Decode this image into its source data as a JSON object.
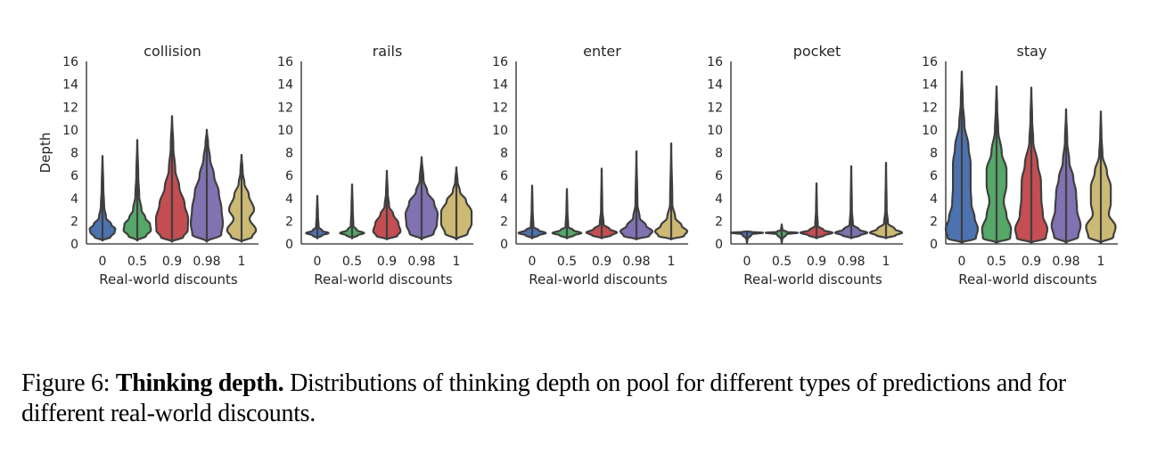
{
  "caption": {
    "label": "Figure 6:",
    "bold": "Thinking depth.",
    "text": "Distributions of thinking depth on pool for different types of predictions and for different real-world discounts."
  },
  "chart_data": {
    "type": "violin",
    "shared_ylabel": "Depth",
    "xlabel": "Real-world discounts",
    "categories": [
      "0",
      "0.5",
      "0.9",
      "0.98",
      "1"
    ],
    "series_colors": [
      "#4c72b0",
      "#55a868",
      "#c44e52",
      "#8172b2",
      "#ccb974"
    ],
    "ylim": [
      0,
      16
    ],
    "yticks": [
      0,
      2,
      4,
      6,
      8,
      10,
      12,
      14,
      16
    ],
    "panels": [
      {
        "title": "collision",
        "violins": [
          {
            "max": 7.7,
            "profile": [
              [
                0.3,
                0
              ],
              [
                0.6,
                0.5
              ],
              [
                1.0,
                0.75
              ],
              [
                1.3,
                0.8
              ],
              [
                1.7,
                0.55
              ],
              [
                2.3,
                0.22
              ],
              [
                3.3,
                0.1
              ],
              [
                5,
                0.05
              ],
              [
                7.7,
                0
              ]
            ]
          },
          {
            "max": 9.1,
            "profile": [
              [
                0.3,
                0
              ],
              [
                0.7,
                0.55
              ],
              [
                1.2,
                0.85
              ],
              [
                1.7,
                0.8
              ],
              [
                2.3,
                0.5
              ],
              [
                3.0,
                0.26
              ],
              [
                4.2,
                0.12
              ],
              [
                6,
                0.06
              ],
              [
                9.1,
                0
              ]
            ]
          },
          {
            "max": 11.2,
            "profile": [
              [
                0.2,
                0
              ],
              [
                0.6,
                0.7
              ],
              [
                1.2,
                0.98
              ],
              [
                2.2,
                1.0
              ],
              [
                3.5,
                0.78
              ],
              [
                5.0,
                0.45
              ],
              [
                6.5,
                0.2
              ],
              [
                8.5,
                0.08
              ],
              [
                11.2,
                0
              ]
            ]
          },
          {
            "max": 10.0,
            "profile": [
              [
                0.2,
                0
              ],
              [
                0.8,
                0.9
              ],
              [
                1.8,
                1.0
              ],
              [
                3.0,
                0.92
              ],
              [
                4.5,
                0.75
              ],
              [
                6.0,
                0.45
              ],
              [
                7.5,
                0.2
              ],
              [
                8.8,
                0.08
              ],
              [
                10.0,
                0
              ]
            ]
          },
          {
            "max": 7.8,
            "profile": [
              [
                0.2,
                0
              ],
              [
                0.6,
                0.65
              ],
              [
                1.2,
                0.9
              ],
              [
                2.2,
                0.5
              ],
              [
                3.0,
                0.78
              ],
              [
                4.3,
                0.45
              ],
              [
                5.3,
                0.18
              ],
              [
                6.3,
                0.07
              ],
              [
                7.8,
                0
              ]
            ]
          }
        ]
      },
      {
        "title": "rails",
        "violins": [
          {
            "max": 4.2,
            "profile": [
              [
                0.5,
                0
              ],
              [
                0.75,
                0.3
              ],
              [
                0.95,
                0.7
              ],
              [
                1.15,
                0.3
              ],
              [
                1.5,
                0.08
              ],
              [
                2.5,
                0.04
              ],
              [
                4.2,
                0
              ]
            ]
          },
          {
            "max": 5.2,
            "profile": [
              [
                0.5,
                0
              ],
              [
                0.75,
                0.35
              ],
              [
                0.95,
                0.75
              ],
              [
                1.2,
                0.3
              ],
              [
                1.6,
                0.08
              ],
              [
                3,
                0.04
              ],
              [
                5.2,
                0
              ]
            ]
          },
          {
            "max": 6.4,
            "profile": [
              [
                0.4,
                0
              ],
              [
                0.7,
                0.65
              ],
              [
                1.1,
                0.85
              ],
              [
                1.8,
                0.72
              ],
              [
                2.6,
                0.4
              ],
              [
                3.3,
                0.14
              ],
              [
                4.5,
                0.05
              ],
              [
                6.4,
                0
              ]
            ]
          },
          {
            "max": 7.6,
            "profile": [
              [
                0.4,
                0
              ],
              [
                0.9,
                0.75
              ],
              [
                1.7,
                0.95
              ],
              [
                2.6,
                1.0
              ],
              [
                3.6,
                0.78
              ],
              [
                4.6,
                0.35
              ],
              [
                5.6,
                0.12
              ],
              [
                7.6,
                0
              ]
            ]
          },
          {
            "max": 6.7,
            "profile": [
              [
                0.4,
                0
              ],
              [
                0.9,
                0.7
              ],
              [
                1.8,
                0.95
              ],
              [
                2.8,
                0.95
              ],
              [
                3.8,
                0.6
              ],
              [
                4.6,
                0.22
              ],
              [
                5.5,
                0.07
              ],
              [
                6.7,
                0
              ]
            ]
          }
        ]
      },
      {
        "title": "enter",
        "violins": [
          {
            "max": 5.1,
            "profile": [
              [
                0.5,
                0
              ],
              [
                0.75,
                0.4
              ],
              [
                0.95,
                0.85
              ],
              [
                1.2,
                0.4
              ],
              [
                1.5,
                0.08
              ],
              [
                3,
                0.03
              ],
              [
                5.1,
                0
              ]
            ]
          },
          {
            "max": 4.8,
            "profile": [
              [
                0.5,
                0
              ],
              [
                0.75,
                0.45
              ],
              [
                0.95,
                0.9
              ],
              [
                1.2,
                0.4
              ],
              [
                1.5,
                0.08
              ],
              [
                3,
                0.03
              ],
              [
                4.8,
                0
              ]
            ]
          },
          {
            "max": 6.6,
            "profile": [
              [
                0.5,
                0
              ],
              [
                0.75,
                0.6
              ],
              [
                1.0,
                0.95
              ],
              [
                1.3,
                0.5
              ],
              [
                1.7,
                0.12
              ],
              [
                3,
                0.04
              ],
              [
                6.6,
                0
              ]
            ]
          },
          {
            "max": 8.1,
            "profile": [
              [
                0.4,
                0
              ],
              [
                0.7,
                0.8
              ],
              [
                1.1,
                1.0
              ],
              [
                1.6,
                0.6
              ],
              [
                2.3,
                0.2
              ],
              [
                3.5,
                0.06
              ],
              [
                8.1,
                0
              ]
            ]
          },
          {
            "max": 8.8,
            "profile": [
              [
                0.4,
                0
              ],
              [
                0.7,
                0.8
              ],
              [
                1.1,
                1.0
              ],
              [
                1.6,
                0.65
              ],
              [
                2.3,
                0.25
              ],
              [
                3.5,
                0.07
              ],
              [
                8.8,
                0
              ]
            ]
          }
        ]
      },
      {
        "title": "pocket",
        "violins": [
          {
            "max": 1.1,
            "profile": [
              [
                0.1,
                0
              ],
              [
                0.4,
                0.03
              ],
              [
                0.85,
                0.3
              ],
              [
                0.98,
                1.0
              ],
              [
                1.05,
                0.3
              ],
              [
                1.1,
                0
              ]
            ]
          },
          {
            "max": 1.7,
            "profile": [
              [
                0.1,
                0
              ],
              [
                0.4,
                0.03
              ],
              [
                0.85,
                0.3
              ],
              [
                0.98,
                1.0
              ],
              [
                1.06,
                0.3
              ],
              [
                1.25,
                0.04
              ],
              [
                1.7,
                0
              ]
            ]
          },
          {
            "max": 5.3,
            "profile": [
              [
                0.5,
                0
              ],
              [
                0.75,
                0.5
              ],
              [
                0.98,
                1.0
              ],
              [
                1.2,
                0.45
              ],
              [
                1.6,
                0.08
              ],
              [
                3,
                0.03
              ],
              [
                5.3,
                0
              ]
            ]
          },
          {
            "max": 6.8,
            "profile": [
              [
                0.5,
                0
              ],
              [
                0.75,
                0.55
              ],
              [
                0.98,
                1.0
              ],
              [
                1.25,
                0.5
              ],
              [
                1.7,
                0.1
              ],
              [
                3,
                0.04
              ],
              [
                6.8,
                0
              ]
            ]
          },
          {
            "max": 7.1,
            "profile": [
              [
                0.5,
                0
              ],
              [
                0.75,
                0.6
              ],
              [
                0.98,
                1.0
              ],
              [
                1.3,
                0.55
              ],
              [
                1.8,
                0.12
              ],
              [
                3,
                0.04
              ],
              [
                7.1,
                0
              ]
            ]
          }
        ]
      },
      {
        "title": "stay",
        "violins": [
          {
            "max": 15.1,
            "profile": [
              [
                0.1,
                0
              ],
              [
                0.5,
                0.88
              ],
              [
                1.3,
                1.0
              ],
              [
                2.3,
                0.8
              ],
              [
                3.5,
                0.6
              ],
              [
                5.0,
                0.55
              ],
              [
                7.0,
                0.55
              ],
              [
                8.5,
                0.42
              ],
              [
                10.5,
                0.16
              ],
              [
                12.5,
                0.06
              ],
              [
                15.1,
                0
              ]
            ]
          },
          {
            "max": 13.8,
            "profile": [
              [
                0.1,
                0
              ],
              [
                0.5,
                0.85
              ],
              [
                1.3,
                0.9
              ],
              [
                2.5,
                0.62
              ],
              [
                3.7,
                0.45
              ],
              [
                5.2,
                0.62
              ],
              [
                6.5,
                0.62
              ],
              [
                8.0,
                0.32
              ],
              [
                10,
                0.1
              ],
              [
                12,
                0.04
              ],
              [
                13.8,
                0
              ]
            ]
          },
          {
            "max": 13.7,
            "profile": [
              [
                0.1,
                0
              ],
              [
                0.5,
                0.9
              ],
              [
                1.3,
                1.0
              ],
              [
                2.5,
                0.72
              ],
              [
                4.0,
                0.62
              ],
              [
                5.5,
                0.6
              ],
              [
                7.0,
                0.4
              ],
              [
                9.0,
                0.12
              ],
              [
                11,
                0.05
              ],
              [
                13.7,
                0
              ]
            ]
          },
          {
            "max": 11.8,
            "profile": [
              [
                0.1,
                0
              ],
              [
                0.6,
                0.75
              ],
              [
                1.6,
                0.9
              ],
              [
                3.0,
                0.68
              ],
              [
                4.5,
                0.62
              ],
              [
                5.8,
                0.45
              ],
              [
                7.2,
                0.2
              ],
              [
                9.0,
                0.07
              ],
              [
                11.8,
                0
              ]
            ]
          },
          {
            "max": 11.6,
            "profile": [
              [
                0.1,
                0
              ],
              [
                0.6,
                0.78
              ],
              [
                1.5,
                0.92
              ],
              [
                2.6,
                0.5
              ],
              [
                3.6,
                0.62
              ],
              [
                5.0,
                0.62
              ],
              [
                6.3,
                0.38
              ],
              [
                7.8,
                0.1
              ],
              [
                9.5,
                0.04
              ],
              [
                11.6,
                0
              ]
            ]
          }
        ]
      }
    ]
  }
}
